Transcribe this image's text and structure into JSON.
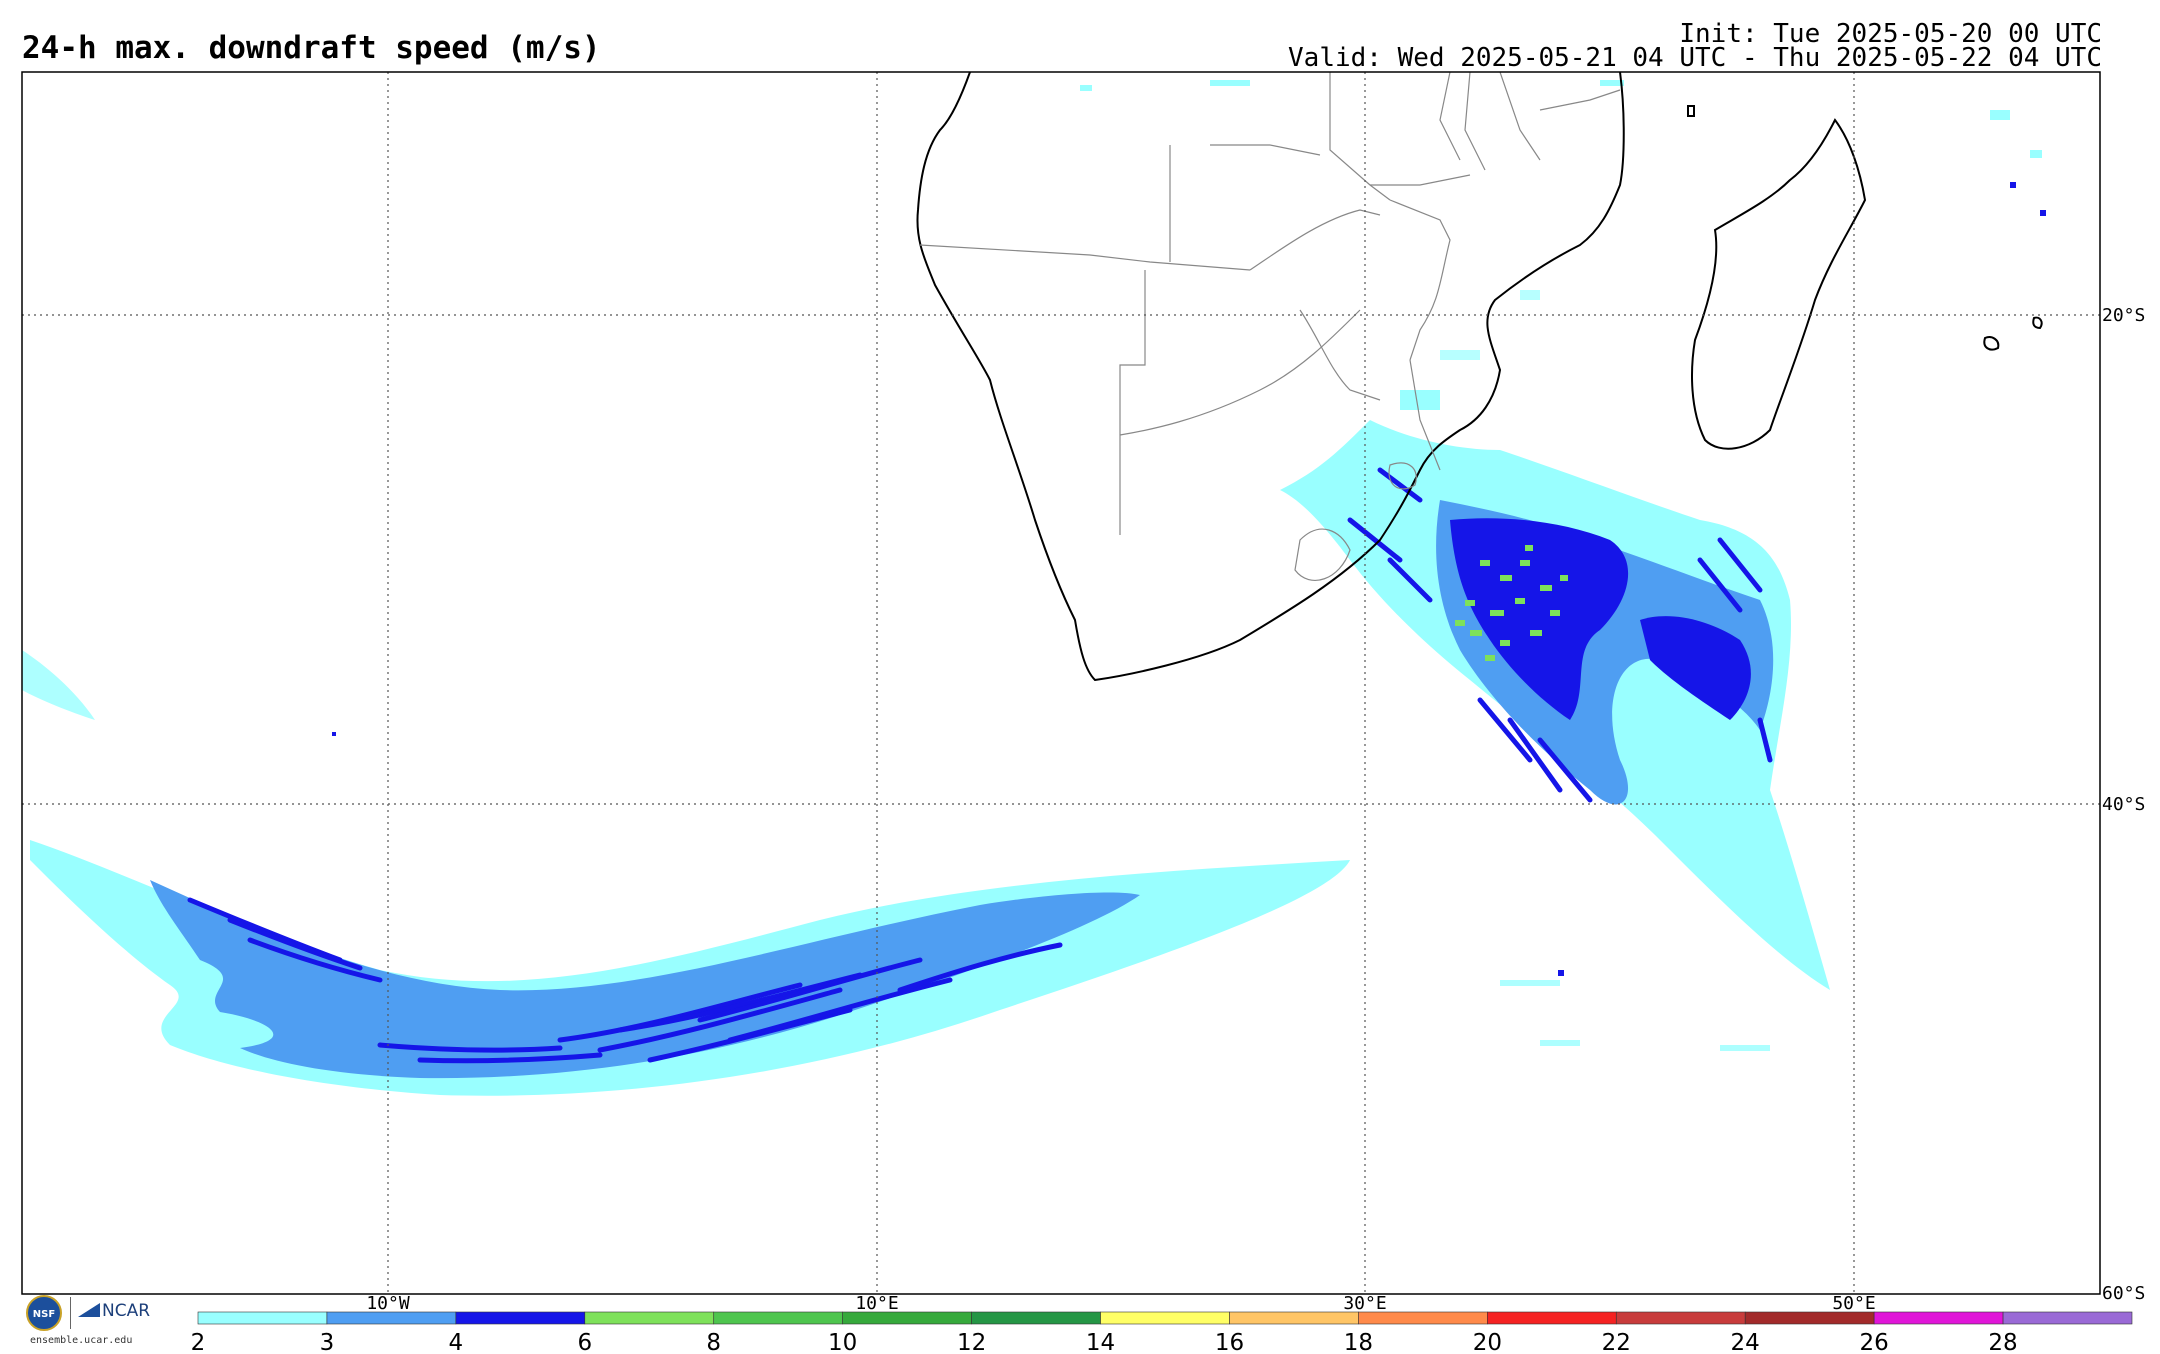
{
  "header": {
    "title": "24-h max. downdraft speed (m/s)",
    "init": "Init: Tue 2025-05-20 00 UTC",
    "valid": "Valid: Wed 2025-05-21 04 UTC - Thu 2025-05-22 04 UTC"
  },
  "map": {
    "lon_labels": [
      "10°W",
      "10°E",
      "30°E",
      "50°E"
    ],
    "lat_labels": [
      "20°S",
      "40°S",
      "60°S"
    ],
    "frame_color": "#000000",
    "gridline_style": "dotted"
  },
  "colorbar": {
    "ticks": [
      "2",
      "3",
      "4",
      "6",
      "8",
      "10",
      "12",
      "14",
      "16",
      "18",
      "20",
      "22",
      "24",
      "26",
      "28"
    ],
    "colors": [
      "#99FFFF",
      "#4F9EF2",
      "#1515E8",
      "#7EE15A",
      "#4EC54E",
      "#36A93C",
      "#259645",
      "#FFFF66",
      "#FFC566",
      "#FF8A4A",
      "#F52222",
      "#C83C3C",
      "#A22A2A",
      "#E015D8",
      "#9A6AD6"
    ]
  },
  "logos": {
    "nsf": "NSF",
    "ncar": "NCAR",
    "site": "ensemble.ucar.edu"
  }
}
